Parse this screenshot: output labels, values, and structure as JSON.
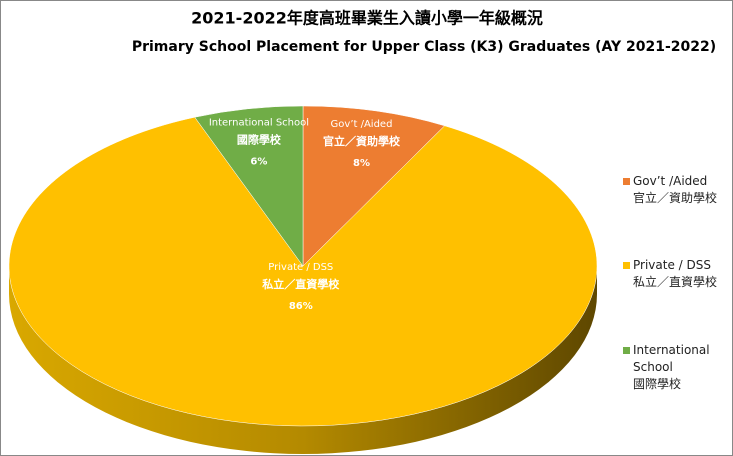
{
  "chart_data": {
    "type": "pie3d",
    "title": "2021-2022年度高班畢業生入讀小學一年級概況",
    "subtitle": "Primary School Placement for Upper Class (K3) Graduates (AY 2021-2022)",
    "categories": [
      [
        "Gov’t /Aided",
        "官立／資助學校"
      ],
      [
        "Private / DSS",
        "私立／直資學校"
      ],
      [
        "International School",
        "國際學校"
      ]
    ],
    "values": [
      8,
      86,
      6
    ],
    "value_labels": [
      "8%",
      "86%",
      "6%"
    ],
    "colors": [
      "#ED7D31",
      "#FFC000",
      "#70AD47"
    ],
    "legend": "right"
  }
}
